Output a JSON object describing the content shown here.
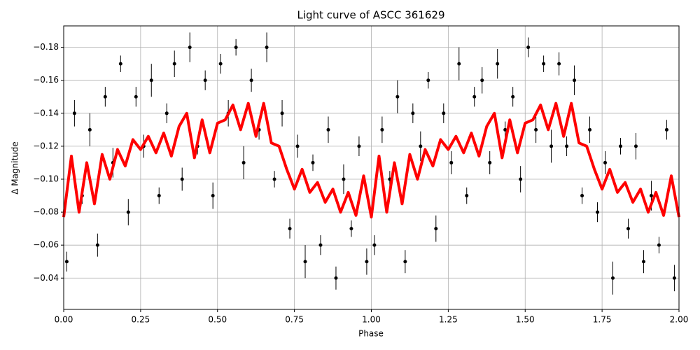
{
  "chart_data": {
    "type": "scatter",
    "title": "Light curve of ASCC 361629",
    "x_label": "Phase",
    "y_label": "Δ Magnitude",
    "xlim": [
      0,
      2
    ],
    "ylim": [
      -0.021,
      -0.193
    ],
    "xticks": [
      {
        "value": 0,
        "label": "0.00"
      },
      {
        "value": 0.25,
        "label": "0.25"
      },
      {
        "value": 0.5,
        "label": "0.50"
      },
      {
        "value": 0.75,
        "label": "0.75"
      },
      {
        "value": 1,
        "label": "1.00"
      },
      {
        "value": 1.25,
        "label": "1.25"
      },
      {
        "value": 1.5,
        "label": "1.50"
      },
      {
        "value": 1.75,
        "label": "1.75"
      },
      {
        "value": 2,
        "label": "2.00"
      }
    ],
    "yticks": [
      {
        "value": -0.18,
        "label": "−0.18"
      },
      {
        "value": -0.16,
        "label": "−0.16"
      },
      {
        "value": -0.14,
        "label": "−0.14"
      },
      {
        "value": -0.12,
        "label": "−0.12"
      },
      {
        "value": -0.1,
        "label": "−0.10"
      },
      {
        "value": -0.08,
        "label": "−0.08"
      },
      {
        "value": -0.06,
        "label": "−0.06"
      },
      {
        "value": -0.04,
        "label": "−0.04"
      }
    ],
    "grid": true,
    "points": {
      "color": "#000000",
      "x": [
        0.01,
        0.035,
        0.06,
        0.085,
        0.11,
        0.135,
        0.16,
        0.185,
        0.21,
        0.235,
        0.26,
        0.285,
        0.31,
        0.335,
        0.36,
        0.385,
        0.41,
        0.435,
        0.46,
        0.485,
        0.51,
        0.535,
        0.56,
        0.585,
        0.61,
        0.635,
        0.66,
        0.685,
        0.71,
        0.735,
        0.76,
        0.785,
        0.81,
        0.835,
        0.86,
        0.885,
        0.91,
        0.935,
        0.96,
        0.985,
        1.01,
        1.035,
        1.06,
        1.085,
        1.11,
        1.135,
        1.16,
        1.185,
        1.21,
        1.235,
        1.26,
        1.285,
        1.31,
        1.335,
        1.36,
        1.385,
        1.41,
        1.435,
        1.46,
        1.485,
        1.51,
        1.535,
        1.56,
        1.585,
        1.61,
        1.635,
        1.66,
        1.685,
        1.71,
        1.735,
        1.76,
        1.785,
        1.81,
        1.835,
        1.86,
        1.885,
        1.91,
        1.935,
        1.96,
        1.985
      ],
      "y": [
        -0.05,
        -0.14,
        -0.09,
        -0.13,
        -0.06,
        -0.15,
        -0.11,
        -0.17,
        -0.08,
        -0.15,
        -0.12,
        -0.16,
        -0.09,
        -0.14,
        -0.17,
        -0.1,
        -0.18,
        -0.12,
        -0.16,
        -0.09,
        -0.17,
        -0.14,
        -0.18,
        -0.11,
        -0.16,
        -0.13,
        -0.18,
        -0.1,
        -0.14,
        -0.07,
        -0.12,
        -0.05,
        -0.11,
        -0.06,
        -0.13,
        -0.04,
        -0.1,
        -0.07,
        -0.12,
        -0.05,
        -0.06,
        -0.13,
        -0.1,
        -0.15,
        -0.05,
        -0.14,
        -0.12,
        -0.16,
        -0.07,
        -0.14,
        -0.11,
        -0.17,
        -0.09,
        -0.15,
        -0.16,
        -0.11,
        -0.17,
        -0.13,
        -0.15,
        -0.1,
        -0.18,
        -0.13,
        -0.17,
        -0.12,
        -0.17,
        -0.12,
        -0.16,
        -0.09,
        -0.13,
        -0.08,
        -0.11,
        -0.04,
        -0.12,
        -0.07,
        -0.12,
        -0.05,
        -0.09,
        -0.06,
        -0.13,
        -0.04
      ],
      "yerr": [
        0.006,
        0.008,
        0.005,
        0.01,
        0.007,
        0.006,
        0.009,
        0.005,
        0.008,
        0.006,
        0.007,
        0.01,
        0.005,
        0.006,
        0.008,
        0.007,
        0.009,
        0.005,
        0.006,
        0.008,
        0.006,
        0.008,
        0.005,
        0.01,
        0.007,
        0.006,
        0.009,
        0.005,
        0.008,
        0.006,
        0.007,
        0.01,
        0.005,
        0.006,
        0.008,
        0.007,
        0.009,
        0.005,
        0.006,
        0.008,
        0.006,
        0.008,
        0.005,
        0.01,
        0.007,
        0.006,
        0.009,
        0.005,
        0.008,
        0.006,
        0.007,
        0.01,
        0.005,
        0.006,
        0.008,
        0.007,
        0.009,
        0.005,
        0.006,
        0.008,
        0.006,
        0.008,
        0.005,
        0.01,
        0.007,
        0.006,
        0.009,
        0.005,
        0.008,
        0.006,
        0.007,
        0.01,
        0.005,
        0.006,
        0.008,
        0.007,
        0.009,
        0.005,
        0.006,
        0.008
      ]
    },
    "fit": {
      "color": "#ff0000",
      "x": [
        0,
        0.025,
        0.05,
        0.075,
        0.1,
        0.125,
        0.15,
        0.175,
        0.2,
        0.225,
        0.25,
        0.275,
        0.3,
        0.325,
        0.35,
        0.375,
        0.4,
        0.425,
        0.45,
        0.475,
        0.5,
        0.525,
        0.55,
        0.575,
        0.6,
        0.625,
        0.65,
        0.675,
        0.7,
        0.725,
        0.75,
        0.775,
        0.8,
        0.825,
        0.85,
        0.875,
        0.9,
        0.925,
        0.95,
        0.975,
        1,
        1.025,
        1.05,
        1.075,
        1.1,
        1.125,
        1.15,
        1.175,
        1.2,
        1.225,
        1.25,
        1.275,
        1.3,
        1.325,
        1.35,
        1.375,
        1.4,
        1.425,
        1.45,
        1.475,
        1.5,
        1.525,
        1.55,
        1.575,
        1.6,
        1.625,
        1.65,
        1.675,
        1.7,
        1.725,
        1.75,
        1.775,
        1.8,
        1.825,
        1.85,
        1.875,
        1.9,
        1.925,
        1.95,
        1.975,
        2
      ],
      "values": [
        -0.077,
        -0.114,
        -0.08,
        -0.11,
        -0.085,
        -0.115,
        -0.1,
        -0.118,
        -0.108,
        -0.124,
        -0.118,
        -0.126,
        -0.116,
        -0.128,
        -0.114,
        -0.132,
        -0.14,
        -0.113,
        -0.136,
        -0.116,
        -0.134,
        -0.136,
        -0.145,
        -0.13,
        -0.146,
        -0.126,
        -0.146,
        -0.122,
        -0.12,
        -0.106,
        -0.094,
        -0.106,
        -0.092,
        -0.098,
        -0.086,
        -0.094,
        -0.08,
        -0.092,
        -0.078,
        -0.102,
        -0.077,
        -0.114,
        -0.08,
        -0.11,
        -0.085,
        -0.115,
        -0.1,
        -0.118,
        -0.108,
        -0.124,
        -0.118,
        -0.126,
        -0.116,
        -0.128,
        -0.114,
        -0.132,
        -0.14,
        -0.113,
        -0.136,
        -0.116,
        -0.134,
        -0.136,
        -0.145,
        -0.13,
        -0.146,
        -0.126,
        -0.146,
        -0.122,
        -0.12,
        -0.106,
        -0.094,
        -0.106,
        -0.092,
        -0.098,
        -0.086,
        -0.094,
        -0.08,
        -0.092,
        -0.078,
        -0.102,
        -0.077
      ]
    }
  }
}
